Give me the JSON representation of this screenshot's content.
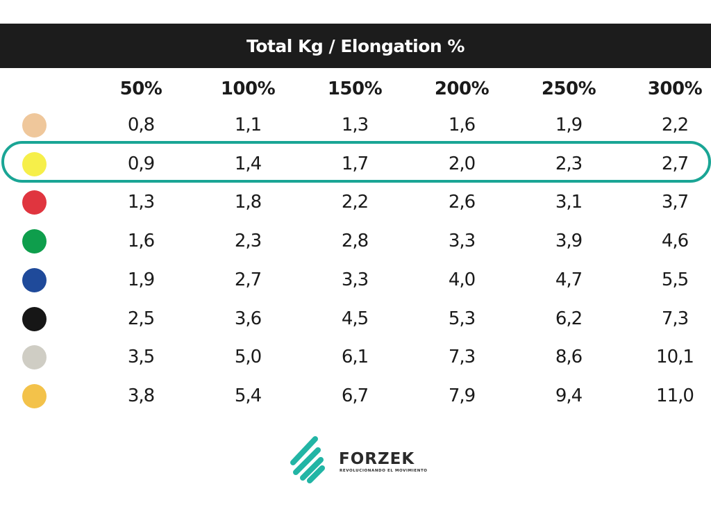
{
  "title": "Total Kg / Elongation %",
  "headers": [
    "50%",
    "100%",
    "150%",
    "200%",
    "250%",
    "300%"
  ],
  "rows": [
    {
      "color": "#efc79b",
      "values": [
        "0,8",
        "1,1",
        "1,3",
        "1,6",
        "1,9",
        "2,2"
      ]
    },
    {
      "color": "#f6ef4a",
      "values": [
        "0,9",
        "1,4",
        "1,7",
        "2,0",
        "2,3",
        "2,7"
      ]
    },
    {
      "color": "#e0353f",
      "values": [
        "1,3",
        "1,8",
        "2,2",
        "2,6",
        "3,1",
        "3,7"
      ]
    },
    {
      "color": "#0e9e4c",
      "values": [
        "1,6",
        "2,3",
        "2,8",
        "3,3",
        "3,9",
        "4,6"
      ]
    },
    {
      "color": "#1f4a9a",
      "values": [
        "1,9",
        "2,7",
        "3,3",
        "4,0",
        "4,7",
        "5,5"
      ]
    },
    {
      "color": "#161616",
      "values": [
        "2,5",
        "3,6",
        "4,5",
        "5,3",
        "6,2",
        "7,3"
      ]
    },
    {
      "color": "#cfcdc4",
      "values": [
        "3,5",
        "5,0",
        "6,1",
        "7,3",
        "8,6",
        "10,1"
      ]
    },
    {
      "color": "#f3c24a",
      "values": [
        "3,8",
        "5,4",
        "6,7",
        "7,9",
        "9,4",
        "11,0"
      ]
    }
  ],
  "highlighted_row": 1,
  "highlight_color": "#1aa595",
  "logo": {
    "name": "FORZEK",
    "tagline": "REVOLUCIONANDO EL MOVIMIENTO",
    "icon": "forzek-stripes-logo",
    "accent": "#22b5a5"
  }
}
